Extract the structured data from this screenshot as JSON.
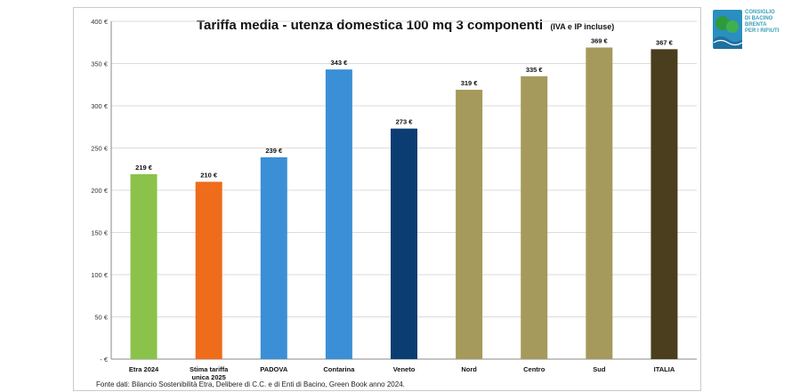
{
  "chart_data": {
    "type": "bar",
    "title": "Tariffa media - utenza domestica 100 mq 3 componenti",
    "subtitle": "(IVA e IP incluse)",
    "categories": [
      "Etra 2024",
      "Stima tariffa unica 2025",
      "PADOVA",
      "Contarina",
      "Veneto",
      "Nord",
      "Centro",
      "Sud",
      "ITALIA"
    ],
    "category_lines": [
      [
        "Etra 2024"
      ],
      [
        "Stima tariffa",
        "unica 2025"
      ],
      [
        "PADOVA"
      ],
      [
        "Contarina"
      ],
      [
        "Veneto"
      ],
      [
        "Nord"
      ],
      [
        "Centro"
      ],
      [
        "Sud"
      ],
      [
        "ITALIA"
      ]
    ],
    "values": [
      219,
      210,
      239,
      343,
      273,
      319,
      335,
      369,
      367
    ],
    "data_labels": [
      "219 €",
      "210 €",
      "239 €",
      "343 €",
      "273 €",
      "319 €",
      "335 €",
      "369 €",
      "367 €"
    ],
    "colors": [
      "#8bc34a",
      "#ef6c1a",
      "#3a8fd6",
      "#3a8fd6",
      "#0b3d73",
      "#a59a5c",
      "#a59a5c",
      "#a59a5c",
      "#4a3e1f"
    ],
    "ylim": [
      0,
      400
    ],
    "yticks": [
      0,
      50,
      100,
      150,
      200,
      250,
      300,
      350,
      400
    ],
    "ytick_labels": [
      "- €",
      "50 €",
      "100 €",
      "150 €",
      "200 €",
      "250 €",
      "300 €",
      "350 €",
      "400 €"
    ],
    "grid": true,
    "legend": "none"
  },
  "source_note": "Fonte dati: Bilancio Sostenibilità Etra, Delibere di C.C. e di Enti di Bacino, Green Book anno 2024.",
  "logo": {
    "lines": [
      "CONSIGLIO",
      "DI BACINO",
      "BRENTA",
      "PER I RIFIUTI"
    ],
    "colors": {
      "green": "#2e9a3e",
      "blue": "#2a8fc0"
    }
  }
}
